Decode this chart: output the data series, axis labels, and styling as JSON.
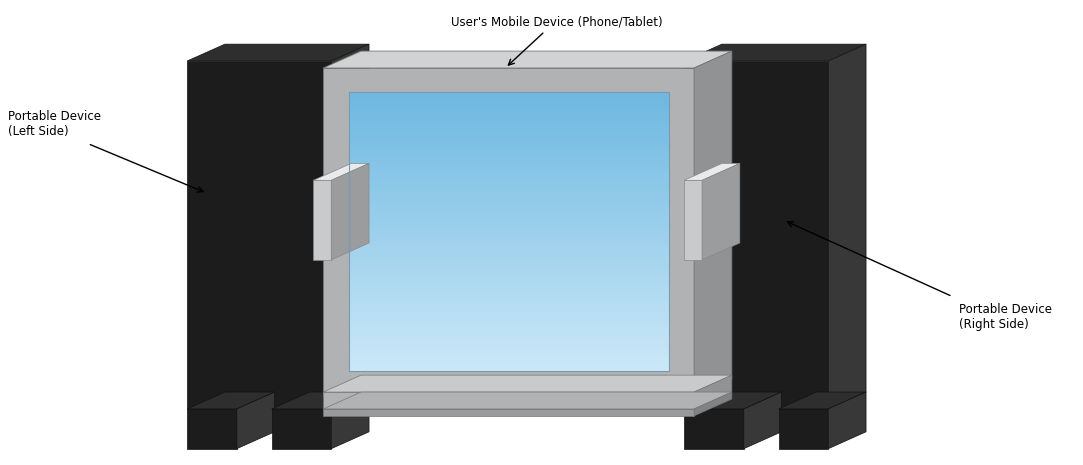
{
  "bg_color": "#ffffff",
  "label_top": "User's Mobile Device (Phone/Tablet)",
  "label_left_line1": "Portable Device",
  "label_left_line2": "(Left Side)",
  "label_right_line1": "Portable Device",
  "label_right_line2": "(Right Side)",
  "dark_color": "#1c1c1c",
  "dark_top": "#2e2e2e",
  "dark_right": "#383838",
  "bezel_front": "#b0b2b4",
  "bezel_top": "#d0d2d4",
  "bezel_right": "#909294",
  "screen_blue_top": "#6db8e0",
  "screen_blue_bottom": "#cde8f8",
  "silver_front": "#c8cacc",
  "silver_top": "#e8eaec",
  "silver_right": "#9a9c9e",
  "dpx": 0.38,
  "dpy": 0.17
}
